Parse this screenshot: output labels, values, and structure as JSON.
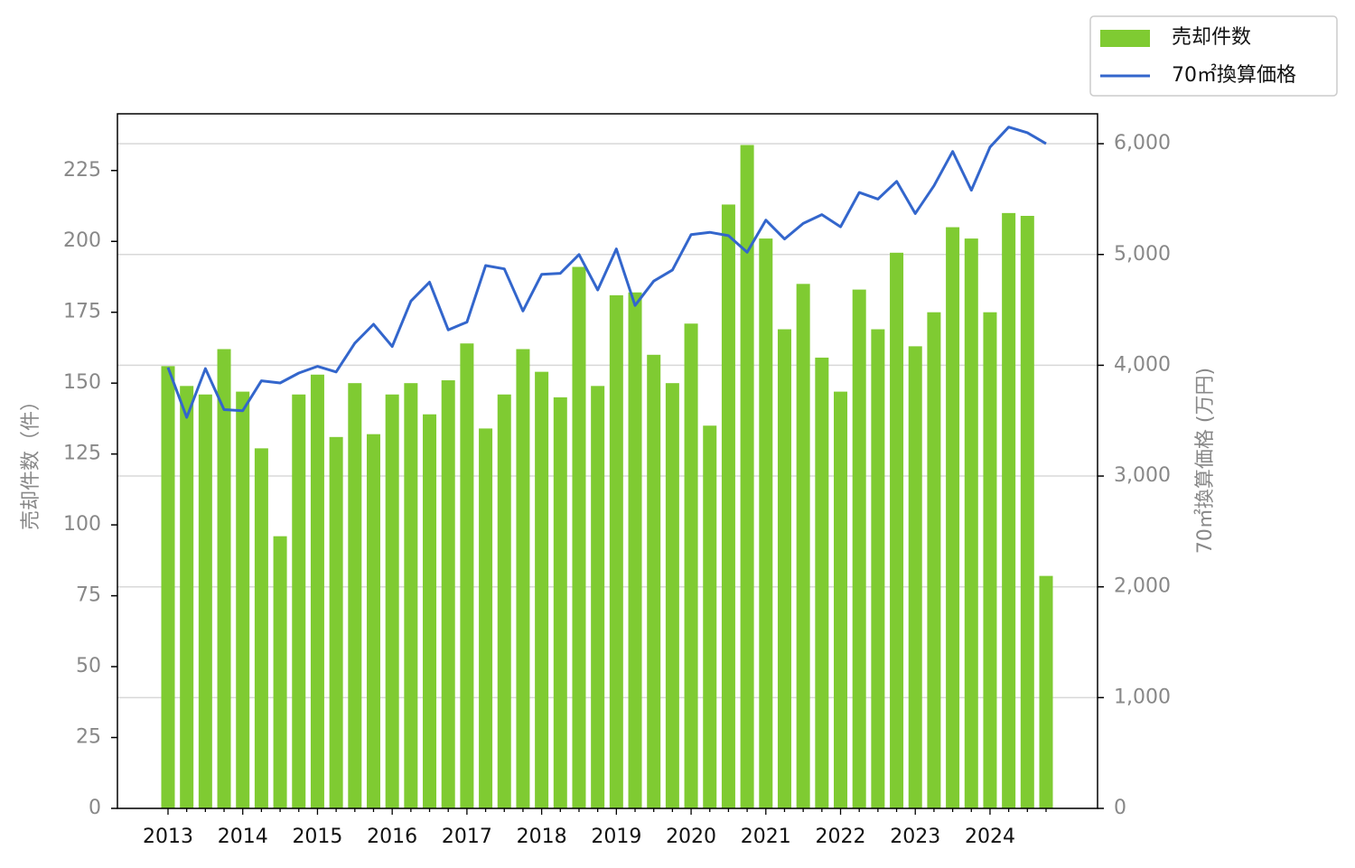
{
  "chart_data": {
    "type": "combo",
    "categories": [
      "2013",
      null,
      null,
      null,
      "2014",
      null,
      null,
      null,
      "2015",
      null,
      null,
      null,
      "2016",
      null,
      null,
      null,
      "2017",
      null,
      null,
      null,
      "2018",
      null,
      null,
      null,
      "2019",
      null,
      null,
      null,
      "2020",
      null,
      null,
      null,
      "2021",
      null,
      null,
      null,
      "2022",
      null,
      null,
      null,
      "2023",
      null,
      null,
      null,
      "2024",
      null,
      null,
      null
    ],
    "series": [
      {
        "name": "売却件数",
        "type": "bar",
        "color": "#7fcb32",
        "axis": "y",
        "values": [
          156,
          149,
          146,
          162,
          147,
          127,
          96,
          146,
          153,
          131,
          150,
          132,
          146,
          150,
          139,
          151,
          164,
          134,
          146,
          162,
          154,
          145,
          191,
          149,
          181,
          182,
          160,
          150,
          171,
          135,
          213,
          234,
          201,
          169,
          185,
          159,
          147,
          183,
          169,
          196,
          163,
          175,
          205,
          201,
          175,
          210,
          209,
          82
        ]
      },
      {
        "name": "70㎡換算価格",
        "type": "line",
        "color": "#3366cc",
        "axis": "y2",
        "values": [
          3980,
          3530,
          3970,
          3600,
          3590,
          3860,
          3840,
          3930,
          3990,
          3940,
          4200,
          4370,
          4170,
          4580,
          4750,
          4320,
          4390,
          4900,
          4870,
          4490,
          4820,
          4830,
          5000,
          4680,
          5050,
          4540,
          4760,
          4860,
          5180,
          5200,
          5170,
          5020,
          5310,
          5140,
          5280,
          5360,
          5250,
          5560,
          5500,
          5660,
          5370,
          5620,
          5930,
          5580,
          5970,
          6150,
          6100,
          6000
        ]
      }
    ],
    "y_label": "売却件数（件）",
    "y2_label": "70㎡換算価格 (万円)",
    "ylim": [
      0,
      245
    ],
    "yticks": [
      0,
      25,
      50,
      75,
      100,
      125,
      150,
      175,
      200,
      225
    ],
    "y2lim": [
      0,
      6270
    ],
    "y2ticks": [
      0,
      {
        "value": 1000,
        "label": "1,000"
      },
      {
        "value": 2000,
        "label": "2,000"
      },
      {
        "value": 3000,
        "label": "3,000"
      },
      {
        "value": 4000,
        "label": "4,000"
      },
      {
        "value": 5000,
        "label": "5,000"
      },
      {
        "value": 6000,
        "label": "6,000"
      }
    ],
    "grid": "y2",
    "legend": "upper right"
  }
}
